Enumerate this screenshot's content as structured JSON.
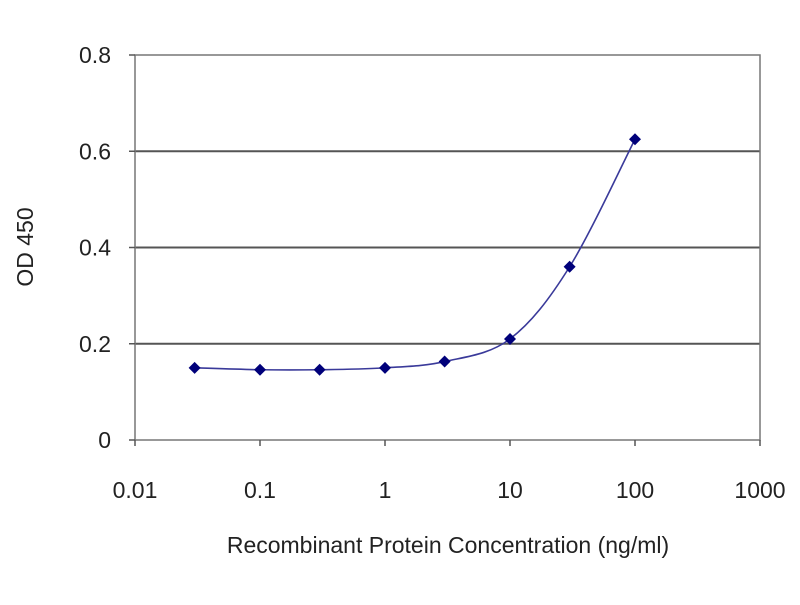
{
  "chart_data": {
    "type": "line",
    "title": "",
    "xlabel": "Recombinant Protein Concentration (ng/ml)",
    "ylabel": "OD 450",
    "x_scale": "log",
    "xlim": [
      0.01,
      1000
    ],
    "ylim": [
      0,
      0.8
    ],
    "x_ticks": [
      "0.01",
      "0.1",
      "1",
      "10",
      "100",
      "1000"
    ],
    "y_ticks": [
      "0",
      "0.2",
      "0.4",
      "0.6",
      "0.8"
    ],
    "grid": "horizontal",
    "legend": "none",
    "series": [
      {
        "x": [
          0.03,
          0.1,
          0.3,
          1,
          3,
          10,
          30,
          100
        ],
        "y": [
          0.15,
          0.146,
          0.146,
          0.15,
          0.163,
          0.21,
          0.36,
          0.625
        ],
        "color": "#00007a"
      }
    ]
  }
}
